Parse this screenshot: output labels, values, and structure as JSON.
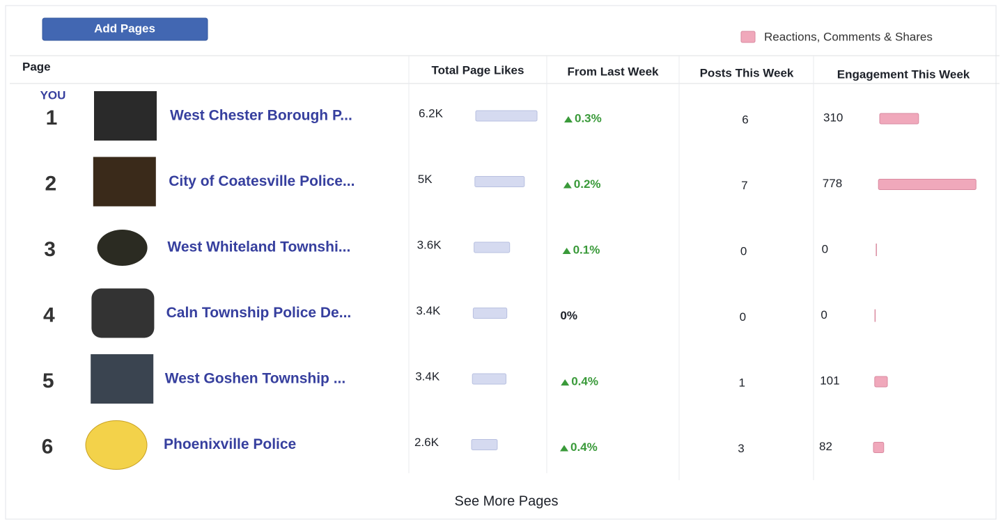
{
  "button": "Add Pages",
  "legend": "Reactions, Comments & Shares",
  "columns": [
    "Page",
    "Total Page Likes",
    "From Last Week",
    "Posts This Week",
    "Engagement This Week"
  ],
  "you_label": "YOU",
  "rows": [
    {
      "rank": 1,
      "name": "West Chester Borough P...",
      "likes": {
        "value": 6200,
        "label": "6.2K"
      },
      "change": "0.3%",
      "posts": 6,
      "engagement": 310
    },
    {
      "rank": 2,
      "name": "City of Coatesville Police...",
      "likes": {
        "value": 5000,
        "label": "5K"
      },
      "change": "0.2%",
      "posts": 7,
      "engagement": 778
    },
    {
      "rank": 3,
      "name": "West Whiteland Townshi...",
      "likes": {
        "value": 3600,
        "label": "3.6K"
      },
      "change": "0.1%",
      "posts": 0,
      "engagement": 0
    },
    {
      "rank": 4,
      "name": "Caln Township Police De...",
      "likes": {
        "value": 3400,
        "label": "3.4K"
      },
      "change": "0%",
      "posts": 0,
      "engagement": 0
    },
    {
      "rank": 5,
      "name": "West Goshen Township ...",
      "likes": {
        "value": 3400,
        "label": "3.4K"
      },
      "change": "0.4%",
      "posts": 1,
      "engagement": 101
    },
    {
      "rank": 6,
      "name": "Phoenixville Police",
      "likes": {
        "value": 2600,
        "label": "2.6K"
      },
      "change": "0.4%",
      "posts": 3,
      "engagement": 82
    }
  ],
  "footer": "See More Pages"
}
